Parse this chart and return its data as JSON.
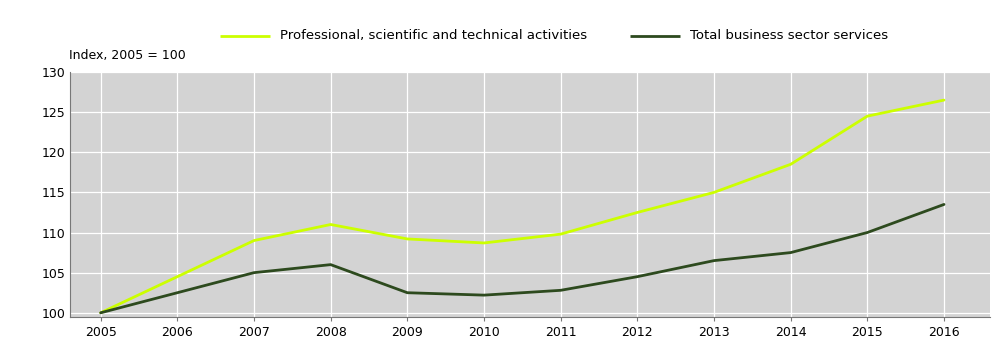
{
  "years": [
    2005,
    2006,
    2007,
    2008,
    2009,
    2010,
    2011,
    2012,
    2013,
    2014,
    2015,
    2016
  ],
  "professional": [
    100,
    104.5,
    109.0,
    111.0,
    109.2,
    108.7,
    109.8,
    112.5,
    115.0,
    118.5,
    124.5,
    126.5
  ],
  "total_business": [
    100,
    102.5,
    105.0,
    106.0,
    102.5,
    102.2,
    102.8,
    104.5,
    106.5,
    107.5,
    110.0,
    113.5
  ],
  "professional_color": "#ccff00",
  "total_business_color": "#2d4a1e",
  "plot_bg_color": "#d3d3d3",
  "legend_bg_color": "#bebebe",
  "white_bg": "#ffffff",
  "ylabel": "Index, 2005 = 100",
  "ylim": [
    99.5,
    130
  ],
  "yticks": [
    100,
    105,
    110,
    115,
    120,
    125,
    130
  ],
  "legend_label1": "Professional, scientific and technical activities",
  "legend_label2": "Total business sector services",
  "line_width": 2.0,
  "grid_color": "#ffffff",
  "legend_fontsize": 9.5,
  "tick_fontsize": 9.0
}
